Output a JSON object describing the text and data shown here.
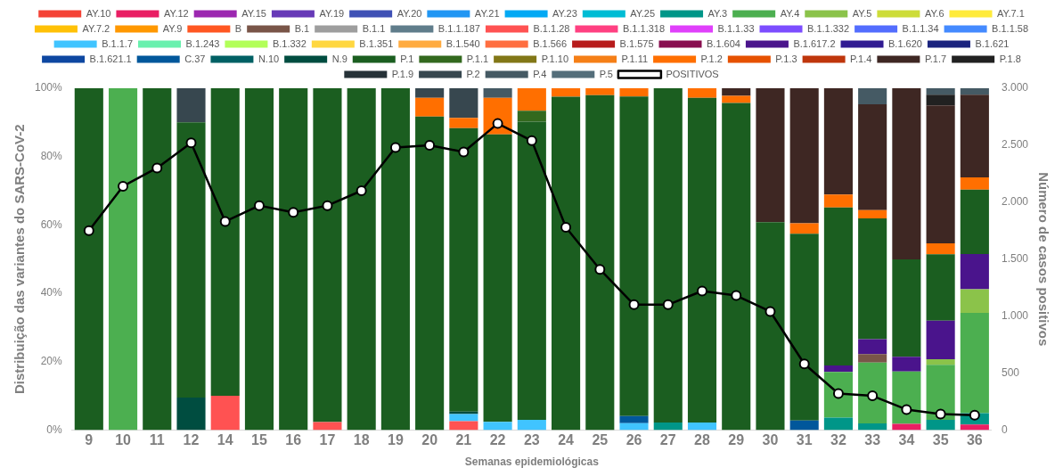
{
  "chart_data": {
    "type": "bar",
    "stacked": true,
    "legend": "top",
    "grid": false,
    "marker": "circle",
    "xlabel": "Semanas epidemiológicas",
    "ylabel": "Distribuição das variantes do SARS-CoV-2",
    "y2label": "Número de casos positivos",
    "categories": [
      "9",
      "10",
      "11",
      "12",
      "14",
      "15",
      "16",
      "17",
      "18",
      "19",
      "20",
      "21",
      "22",
      "23",
      "24",
      "25",
      "26",
      "27",
      "28",
      "29",
      "30",
      "31",
      "32",
      "33",
      "34",
      "35",
      "36"
    ],
    "ylim": [
      0,
      100
    ],
    "yticks": [
      {
        "value": 0,
        "label": "0%"
      },
      {
        "value": 20,
        "label": "20%"
      },
      {
        "value": 40,
        "label": "40%"
      },
      {
        "value": 60,
        "label": "60%"
      },
      {
        "value": 80,
        "label": "80%"
      },
      {
        "value": 100,
        "label": "100%"
      }
    ],
    "y2lim": [
      0,
      3000
    ],
    "y2ticks": [
      0,
      500,
      {
        "value": 1000,
        "label": "1.000"
      },
      {
        "value": 1500,
        "label": "1.500"
      },
      {
        "value": 2000,
        "label": "2.000"
      },
      {
        "value": 2500,
        "label": "2.500"
      },
      {
        "value": 3000,
        "label": "3.000"
      }
    ],
    "series": [
      {
        "name": "AY.10",
        "color": "#f44336",
        "values": [
          0,
          0,
          0,
          0,
          0,
          0,
          0,
          0,
          0,
          0,
          0,
          0,
          0,
          0,
          0,
          0,
          0,
          0,
          0,
          0,
          0,
          0,
          0,
          0,
          0,
          0,
          0
        ]
      },
      {
        "name": "AY.12",
        "color": "#e91e63",
        "values": [
          0,
          0,
          0,
          0,
          0,
          0,
          0,
          0,
          0,
          0,
          0,
          0,
          0,
          0,
          0,
          0,
          0,
          0,
          0,
          0,
          0,
          0,
          0,
          0,
          1.8,
          0,
          1.6
        ]
      },
      {
        "name": "AY.15",
        "color": "#9c27b0",
        "values": [
          0,
          0,
          0,
          0,
          0,
          0,
          0,
          0,
          0,
          0,
          0,
          0,
          0,
          0,
          0,
          0,
          0,
          0,
          0,
          0,
          0,
          0,
          0,
          0,
          0,
          0,
          0
        ]
      },
      {
        "name": "AY.19",
        "color": "#673ab7",
        "values": [
          0,
          0,
          0,
          0,
          0,
          0,
          0,
          0,
          0,
          0,
          0,
          0,
          0,
          0,
          0,
          0,
          0,
          0,
          0,
          0,
          0,
          0,
          0,
          0,
          0,
          0,
          0
        ]
      },
      {
        "name": "AY.20",
        "color": "#3f51b5",
        "values": [
          0,
          0,
          0,
          0,
          0,
          0,
          0,
          0,
          0,
          0,
          0,
          0,
          0,
          0,
          0,
          0,
          0,
          0,
          0,
          0,
          0,
          0,
          0,
          0,
          0,
          0,
          0
        ]
      },
      {
        "name": "AY.21",
        "color": "#2196f3",
        "values": [
          0,
          0,
          0,
          0,
          0,
          0,
          0,
          0,
          0,
          0,
          0,
          0,
          0,
          0,
          0,
          0,
          0,
          0,
          0,
          0,
          0,
          0,
          0,
          0,
          0,
          0,
          0
        ]
      },
      {
        "name": "AY.23",
        "color": "#03a9f4",
        "values": [
          0,
          0,
          0,
          0,
          0,
          0,
          0,
          0,
          0,
          0,
          0,
          0,
          0,
          0,
          0,
          0,
          0,
          0,
          0,
          0,
          0,
          0,
          0,
          0,
          0,
          0,
          0
        ]
      },
      {
        "name": "AY.25",
        "color": "#00bcd4",
        "values": [
          0,
          0,
          0,
          0,
          0,
          0,
          0,
          0,
          0,
          0,
          0,
          0,
          0,
          0,
          0,
          0,
          0,
          0,
          0,
          0,
          0,
          0,
          0,
          0,
          0,
          0,
          0
        ]
      },
      {
        "name": "AY.3",
        "color": "#009688",
        "values": [
          0,
          0,
          0,
          0,
          0,
          0,
          0,
          0,
          0,
          0,
          0,
          0,
          0,
          0,
          0,
          0,
          0,
          2.2,
          0,
          0,
          0,
          0,
          3.6,
          1.9,
          0,
          3.0,
          3.3
        ]
      },
      {
        "name": "AY.4",
        "color": "#4caf50",
        "values": [
          0,
          100,
          0,
          0,
          0,
          0,
          0,
          0,
          0,
          0,
          0,
          0,
          0,
          0,
          0,
          0,
          0,
          0,
          0,
          0,
          0,
          0,
          13.4,
          17.8,
          15.3,
          16.1,
          29.4
        ]
      },
      {
        "name": "AY.5",
        "color": "#8bc34a",
        "values": [
          0,
          0,
          0,
          0,
          0,
          0,
          0,
          0,
          0,
          0,
          0,
          0,
          0,
          0,
          0,
          0,
          0,
          0,
          0,
          0,
          0,
          0,
          0,
          0,
          0,
          1.6,
          6.9
        ]
      },
      {
        "name": "AY.6",
        "color": "#cddc39",
        "values": [
          0,
          0,
          0,
          0,
          0,
          0,
          0,
          0,
          0,
          0,
          0,
          0,
          0,
          0,
          0,
          0,
          0,
          0,
          0,
          0,
          0,
          0,
          0,
          0,
          0,
          0,
          0
        ]
      },
      {
        "name": "AY.7.1",
        "color": "#ffeb3b",
        "values": [
          0,
          0,
          0,
          0,
          0,
          0,
          0,
          0,
          0,
          0,
          0,
          0,
          0,
          0,
          0,
          0,
          0,
          0,
          0,
          0,
          0,
          0,
          0,
          0,
          0,
          0,
          0
        ]
      },
      {
        "name": "AY.7.2",
        "color": "#ffc107",
        "values": [
          0,
          0,
          0,
          0,
          0,
          0,
          0,
          0,
          0,
          0,
          0,
          0,
          0,
          0,
          0,
          0,
          0,
          0,
          0,
          0,
          0,
          0,
          0,
          0,
          0,
          0,
          0
        ]
      },
      {
        "name": "AY.9",
        "color": "#ff9800",
        "values": [
          0,
          0,
          0,
          0,
          0,
          0,
          0,
          0,
          0,
          0,
          0,
          0,
          0,
          0,
          0,
          0,
          0,
          0,
          0,
          0,
          0,
          0,
          0,
          0,
          0,
          0,
          0
        ]
      },
      {
        "name": "B",
        "color": "#ff5722",
        "values": [
          0,
          0,
          0,
          0,
          0,
          0,
          0,
          0,
          0,
          0,
          0,
          0,
          0,
          0,
          0,
          0,
          0,
          0,
          0,
          0,
          0,
          0,
          0,
          0,
          0,
          0,
          0
        ]
      },
      {
        "name": "B.1",
        "color": "#795548",
        "values": [
          0,
          0,
          0,
          0,
          0,
          0,
          0,
          0,
          0,
          0,
          0,
          0,
          0,
          0,
          0,
          0,
          0,
          0,
          0,
          0,
          0,
          0,
          0,
          2.5,
          0,
          0,
          0
        ]
      },
      {
        "name": "B.1.1",
        "color": "#9e9e9e",
        "values": [
          0,
          0,
          0,
          0,
          0,
          0,
          0,
          0,
          0,
          0,
          0,
          0,
          0,
          0,
          0,
          0,
          0,
          0,
          0,
          0,
          0,
          0,
          0,
          0,
          0,
          0,
          0
        ]
      },
      {
        "name": "B.1.1.187",
        "color": "#607d8b",
        "values": [
          0,
          0,
          0,
          0,
          0,
          0,
          0,
          0,
          0,
          0,
          0,
          0,
          0,
          0,
          0,
          0,
          0,
          0,
          0,
          0,
          0,
          0,
          0,
          0,
          0,
          0,
          0
        ]
      },
      {
        "name": "B.1.1.28",
        "color": "#ff5252",
        "values": [
          0,
          0,
          0,
          0,
          10,
          0,
          0,
          2.3,
          0,
          0,
          0,
          2.6,
          0,
          0,
          0,
          0,
          0,
          0,
          0,
          0,
          0,
          0,
          0,
          0,
          0,
          0,
          0
        ]
      },
      {
        "name": "B.1.1.318",
        "color": "#ff4081",
        "values": [
          0,
          0,
          0,
          0,
          0,
          0,
          0,
          0,
          0,
          0,
          0,
          0,
          0,
          0,
          0,
          0,
          0,
          0,
          0,
          0,
          0,
          0,
          0,
          0,
          0,
          0,
          0
        ]
      },
      {
        "name": "B.1.1.33",
        "color": "#e040fb",
        "values": [
          0,
          0,
          0,
          0,
          0,
          0,
          0,
          0,
          0,
          0,
          0,
          0,
          0,
          0,
          0,
          0,
          0,
          0,
          0,
          0,
          0,
          0,
          0,
          0,
          0,
          0,
          0
        ]
      },
      {
        "name": "B.1.1.332",
        "color": "#7c4dff",
        "values": [
          0,
          0,
          0,
          0,
          0,
          0,
          0,
          0,
          0,
          0,
          0,
          0,
          0,
          0,
          0,
          0,
          0,
          0,
          0,
          0,
          0,
          0,
          0,
          0,
          0,
          0,
          0
        ]
      },
      {
        "name": "B.1.1.34",
        "color": "#536dfe",
        "values": [
          0,
          0,
          0,
          0,
          0,
          0,
          0,
          0,
          0,
          0,
          0,
          0,
          0,
          0,
          0,
          0,
          0,
          0,
          0,
          0,
          0,
          0,
          0,
          0,
          0,
          0,
          0
        ]
      },
      {
        "name": "B.1.1.58",
        "color": "#448aff",
        "values": [
          0,
          0,
          0,
          0,
          0,
          0,
          0,
          0,
          0,
          0,
          0,
          0,
          0,
          0,
          0,
          0,
          0,
          0,
          0,
          0,
          0,
          0,
          0,
          0,
          0,
          0,
          0
        ]
      },
      {
        "name": "B.1.1.7",
        "color": "#40c4ff",
        "values": [
          0,
          0,
          0,
          0,
          0,
          0,
          0,
          0,
          0,
          0,
          0,
          2.1,
          2.4,
          3.0,
          0,
          0,
          2.0,
          0,
          2.2,
          0,
          0,
          0,
          0,
          0,
          0,
          0,
          0
        ]
      },
      {
        "name": "B.1.243",
        "color": "#69f0ae",
        "values": [
          0,
          0,
          0,
          0,
          0,
          0,
          0,
          0,
          0,
          0,
          0,
          0,
          0,
          0,
          0,
          0,
          0,
          0,
          0,
          0,
          0,
          0,
          0,
          0,
          0,
          0,
          0
        ]
      },
      {
        "name": "B.1.332",
        "color": "#b2ff59",
        "values": [
          0,
          0,
          0,
          0,
          0,
          0,
          0,
          0,
          0,
          0,
          0,
          0,
          0,
          0,
          0,
          0,
          0,
          0,
          0,
          0,
          0,
          0,
          0,
          0,
          0,
          0,
          0
        ]
      },
      {
        "name": "B.1.351",
        "color": "#ffd740",
        "values": [
          0,
          0,
          0,
          0,
          0,
          0,
          0,
          0,
          0,
          0,
          0,
          0,
          0,
          0,
          0,
          0,
          0,
          0,
          0,
          0,
          0,
          0,
          0,
          0,
          0,
          0,
          0
        ]
      },
      {
        "name": "B.1.540",
        "color": "#ffab40",
        "values": [
          0,
          0,
          0,
          0,
          0,
          0,
          0,
          0,
          0,
          0,
          0,
          0,
          0,
          0,
          0,
          0,
          0,
          0,
          0,
          0,
          0,
          0,
          0,
          0,
          0,
          0,
          0
        ]
      },
      {
        "name": "B.1.566",
        "color": "#ff6e40",
        "values": [
          0,
          0,
          0,
          0,
          0,
          0,
          0,
          0,
          0,
          0,
          0,
          0,
          0,
          0,
          0,
          0,
          0,
          0,
          0,
          0,
          0,
          0,
          0,
          0,
          0,
          0,
          0
        ]
      },
      {
        "name": "B.1.575",
        "color": "#b71c1c",
        "values": [
          0,
          0,
          0,
          0,
          0,
          0,
          0,
          0,
          0,
          0,
          0,
          0,
          0,
          0,
          0,
          0,
          0,
          0,
          0,
          0,
          0,
          0,
          0,
          0,
          0,
          0,
          0
        ]
      },
      {
        "name": "B.1.604",
        "color": "#880e4f",
        "values": [
          0,
          0,
          0,
          0,
          0,
          0,
          0,
          0,
          0,
          0,
          0,
          0,
          0,
          0,
          0,
          0,
          0,
          0,
          0,
          0,
          0,
          0,
          0,
          0,
          0,
          0,
          0
        ]
      },
      {
        "name": "B.1.617.2",
        "color": "#4a148c",
        "values": [
          0,
          0,
          0,
          0,
          0,
          0,
          0,
          0,
          0,
          0,
          0,
          0,
          0,
          0,
          0,
          0,
          0,
          0,
          0,
          0,
          0,
          0,
          1.9,
          4.4,
          4.3,
          11.3,
          10.3
        ]
      },
      {
        "name": "B.1.620",
        "color": "#311b92",
        "values": [
          0,
          0,
          0,
          0,
          0,
          0,
          0,
          0,
          0,
          0,
          0,
          0,
          0,
          0,
          0,
          0,
          0,
          0,
          0,
          0,
          0,
          0,
          0,
          0,
          0,
          0,
          0
        ]
      },
      {
        "name": "B.1.621",
        "color": "#1a237e",
        "values": [
          0,
          0,
          0,
          0,
          0,
          0,
          0,
          0,
          0,
          0,
          0,
          0,
          0,
          0,
          0,
          0,
          0,
          0,
          0,
          0,
          0,
          0,
          0,
          0,
          0,
          0,
          0
        ]
      },
      {
        "name": "B.1.621.1",
        "color": "#0d47a1",
        "values": [
          0,
          0,
          0,
          0,
          0,
          0,
          0,
          0,
          0,
          0,
          0,
          0,
          0,
          0,
          0,
          0,
          0,
          0,
          0,
          0,
          0,
          0,
          0,
          0,
          0,
          0,
          0
        ]
      },
      {
        "name": "C.37",
        "color": "#01579b",
        "values": [
          0,
          0,
          0,
          0,
          0,
          0,
          0,
          0,
          0,
          0,
          0,
          0,
          0,
          0,
          0,
          0,
          2.1,
          0,
          0,
          0,
          0,
          2.8,
          0,
          0,
          0,
          0,
          0
        ]
      },
      {
        "name": "N.10",
        "color": "#006064",
        "values": [
          0,
          0,
          0,
          0,
          0,
          0,
          0,
          0,
          0,
          0,
          0,
          0,
          0,
          0,
          0,
          0,
          0,
          0,
          0,
          0,
          0,
          0,
          0,
          0,
          0,
          0,
          0
        ]
      },
      {
        "name": "N.9",
        "color": "#004d40",
        "values": [
          0,
          0,
          0,
          9.5,
          0,
          0,
          0,
          0,
          0,
          0,
          0,
          0.7,
          0,
          0,
          0,
          0,
          0,
          0,
          0,
          0,
          0,
          0,
          0,
          0,
          0,
          0,
          0
        ]
      },
      {
        "name": "P.1",
        "color": "#1b5e20",
        "values": [
          100,
          0,
          100,
          80.5,
          90,
          100,
          100,
          97.7,
          100,
          100,
          91.7,
          82.9,
          84.1,
          87.2,
          97.5,
          98,
          93.5,
          97.8,
          95.0,
          95.7,
          60.8,
          54.6,
          46.2,
          35.3,
          28.5,
          19.4,
          18.8
        ]
      },
      {
        "name": "P.1.1",
        "color": "#33691e",
        "values": [
          0,
          0,
          0,
          0,
          0,
          0,
          0,
          0,
          0,
          0,
          0,
          0,
          0,
          3.2,
          0,
          0,
          0,
          0,
          0,
          0,
          0,
          0,
          0,
          0,
          0,
          0,
          0
        ]
      },
      {
        "name": "P.1.10",
        "color": "#827717",
        "values": [
          0,
          0,
          0,
          0,
          0,
          0,
          0,
          0,
          0,
          0,
          0,
          0,
          0,
          0,
          0,
          0,
          0,
          0,
          0,
          0,
          0,
          0,
          0,
          0,
          0,
          0,
          0
        ]
      },
      {
        "name": "P.1.11",
        "color": "#f57f17",
        "values": [
          0,
          0,
          0,
          0,
          0,
          0,
          0,
          0,
          0,
          0,
          0,
          0,
          0,
          0,
          0,
          0,
          0,
          0,
          0,
          0,
          0,
          0,
          0,
          0,
          0,
          0,
          0
        ]
      },
      {
        "name": "P.1.2",
        "color": "#ff6f00",
        "values": [
          0,
          0,
          0,
          0,
          0,
          0,
          0,
          0,
          0,
          0,
          5.5,
          3.0,
          10.7,
          6.6,
          2.5,
          2,
          2.4,
          0,
          2.8,
          2.1,
          0,
          3.1,
          3.8,
          2.4,
          0,
          3.2,
          3.6
        ]
      },
      {
        "name": "P.1.3",
        "color": "#e65100",
        "values": [
          0,
          0,
          0,
          0,
          0,
          0,
          0,
          0,
          0,
          0,
          0,
          0,
          0,
          0,
          0,
          0,
          0,
          0,
          0,
          0,
          0,
          0,
          0,
          0,
          0,
          0,
          0
        ]
      },
      {
        "name": "P.1.4",
        "color": "#bf360c",
        "values": [
          0,
          0,
          0,
          0,
          0,
          0,
          0,
          0,
          0,
          0,
          0,
          0,
          0,
          0,
          0,
          0,
          0,
          0,
          0,
          0,
          0,
          0,
          0,
          0,
          0,
          0,
          0
        ]
      },
      {
        "name": "P.1.7",
        "color": "#3e2723",
        "values": [
          0,
          0,
          0,
          0,
          0,
          0,
          0,
          0,
          0,
          0,
          0,
          0,
          0,
          0,
          0,
          0,
          0,
          0,
          0,
          2.2,
          39.2,
          39.5,
          31.1,
          31.0,
          50.1,
          40.4,
          24.2
        ]
      },
      {
        "name": "P.1.8",
        "color": "#212121",
        "values": [
          0,
          0,
          0,
          0,
          0,
          0,
          0,
          0,
          0,
          0,
          0,
          0,
          0,
          0,
          0,
          0,
          0,
          0,
          0,
          0,
          0,
          0,
          0,
          0,
          0,
          3.1,
          0
        ]
      },
      {
        "name": "P.1.9",
        "color": "#263238",
        "values": [
          0,
          0,
          0,
          0,
          0,
          0,
          0,
          0,
          0,
          0,
          0,
          0,
          0,
          0,
          0,
          0,
          0,
          0,
          0,
          0,
          0,
          0,
          0,
          0,
          0,
          0,
          0
        ]
      },
      {
        "name": "P.2",
        "color": "#37474f",
        "values": [
          0,
          0,
          0,
          10,
          0,
          0,
          0,
          0,
          0,
          0,
          2.8,
          8.7,
          0,
          0,
          0,
          0,
          0,
          0,
          0,
          0,
          0,
          0,
          0,
          0,
          0,
          0,
          0
        ]
      },
      {
        "name": "P.4",
        "color": "#455a64",
        "values": [
          0,
          0,
          0,
          0,
          0,
          0,
          0,
          0,
          0,
          0,
          0,
          0,
          2.8,
          0,
          0,
          0,
          0,
          0,
          0,
          0,
          0,
          0,
          0,
          4.7,
          0,
          1.9,
          1.9
        ]
      },
      {
        "name": "P.5",
        "color": "#546e7a",
        "values": [
          0,
          0,
          0,
          0,
          0,
          0,
          0,
          0,
          0,
          0,
          0,
          0,
          0,
          0,
          0,
          0,
          0,
          0,
          0,
          0,
          0,
          0,
          0,
          0,
          0,
          0,
          0
        ]
      },
      {
        "name": "POSITIVOS",
        "type": "line",
        "axis": "y2",
        "color": "#000000",
        "values": [
          1750,
          2140,
          2300,
          2520,
          1830,
          1970,
          1910,
          1970,
          2100,
          2480,
          2500,
          2440,
          2690,
          2540,
          1780,
          1410,
          1100,
          1100,
          1220,
          1180,
          1040,
          580,
          320,
          300,
          180,
          140,
          130
        ]
      }
    ]
  }
}
